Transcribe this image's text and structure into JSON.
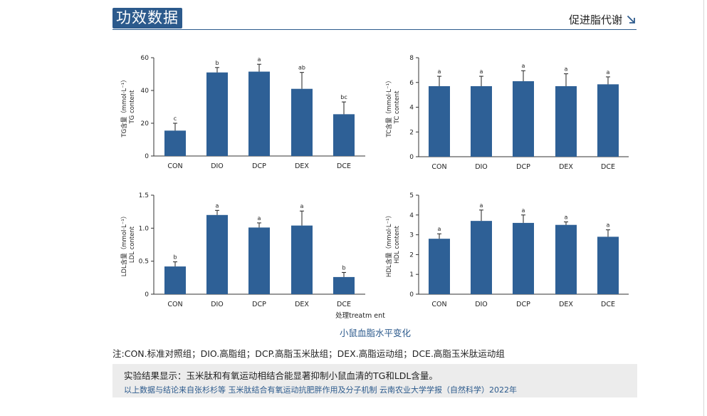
{
  "header": {
    "title": "功效数据",
    "section": "促进脂代谢"
  },
  "chart_data": [
    {
      "type": "bar",
      "categories": [
        "CON",
        "DIO",
        "DCP",
        "DEX",
        "DCE"
      ],
      "values": [
        15.5,
        51,
        51.5,
        41,
        25.5
      ],
      "errors": [
        4.5,
        3,
        4.5,
        10,
        7.5
      ],
      "labels": [
        "c",
        "b",
        "a",
        "ab",
        "bc"
      ],
      "ylabel": [
        "TG含量（mmol·L⁻¹）",
        "TG content"
      ],
      "ylim": [
        0,
        60
      ],
      "yticks": [
        0,
        20,
        40,
        60
      ],
      "ytick_labels": [
        "0",
        "20",
        "40",
        "60"
      ]
    },
    {
      "type": "bar",
      "categories": [
        "CON",
        "DIO",
        "DCP",
        "DEX",
        "DCE"
      ],
      "values": [
        5.7,
        5.7,
        6.1,
        5.7,
        5.85
      ],
      "errors": [
        0.8,
        0.8,
        0.85,
        1.0,
        0.6
      ],
      "labels": [
        "a",
        "a",
        "a",
        "a",
        "a"
      ],
      "ylabel": [
        "TC含量（mmol·L⁻¹）",
        "TC content"
      ],
      "ylim": [
        0,
        8
      ],
      "yticks": [
        0,
        2,
        4,
        6,
        8
      ],
      "ytick_labels": [
        "0",
        "2",
        "4",
        "6",
        "8"
      ]
    },
    {
      "type": "bar",
      "categories": [
        "CON",
        "DIO",
        "DCP",
        "DEX",
        "DCE"
      ],
      "values": [
        0.42,
        1.2,
        1.01,
        1.04,
        0.26
      ],
      "errors": [
        0.07,
        0.07,
        0.07,
        0.22,
        0.07
      ],
      "labels": [
        "b",
        "a",
        "a",
        "a",
        "b"
      ],
      "ylabel": [
        "LDL含量（mmol·L⁻¹）",
        "LDL content"
      ],
      "ylim": [
        0,
        1.5
      ],
      "yticks": [
        0,
        0.5,
        1.0,
        1.5
      ],
      "ytick_labels": [
        "0",
        "0.5",
        "1.0",
        "1.5"
      ]
    },
    {
      "type": "bar",
      "categories": [
        "CON",
        "DIO",
        "DCP",
        "DEX",
        "DCE"
      ],
      "values": [
        2.8,
        3.7,
        3.6,
        3.5,
        2.9
      ],
      "errors": [
        0.25,
        0.55,
        0.4,
        0.15,
        0.35
      ],
      "labels": [
        "a",
        "a",
        "a",
        "a",
        "a"
      ],
      "ylabel": [
        "HDL含量（mmol·L⁻¹）",
        "HDL content"
      ],
      "ylim": [
        0,
        5
      ],
      "yticks": [
        0,
        1,
        2,
        3,
        4,
        5
      ],
      "ytick_labels": [
        "0",
        "1",
        "2",
        "3",
        "4",
        "5"
      ]
    }
  ],
  "figure": {
    "xlabel": "处理treatm ent",
    "caption": "小鼠血脂水平变化"
  },
  "note": "注:CON.标准对照组；DIO.高脂组；DCP.高脂玉米肽组；DEX.高脂运动组；DCE.高脂玉米肽运动组",
  "result": {
    "main": "实验结果显示：玉米肽和有氧运动相结合能显著抑制小鼠血清的TG和LDL含量。",
    "source": "以上数据与结论来自张杉杉等 玉米肽结合有氧运动抗肥胖作用及分子机制  云南农业大学学报（自然科学）2022年"
  },
  "colors": {
    "accent": "#2c5a8c",
    "bar": "#2e6096",
    "caption": "#2c5a8c"
  }
}
